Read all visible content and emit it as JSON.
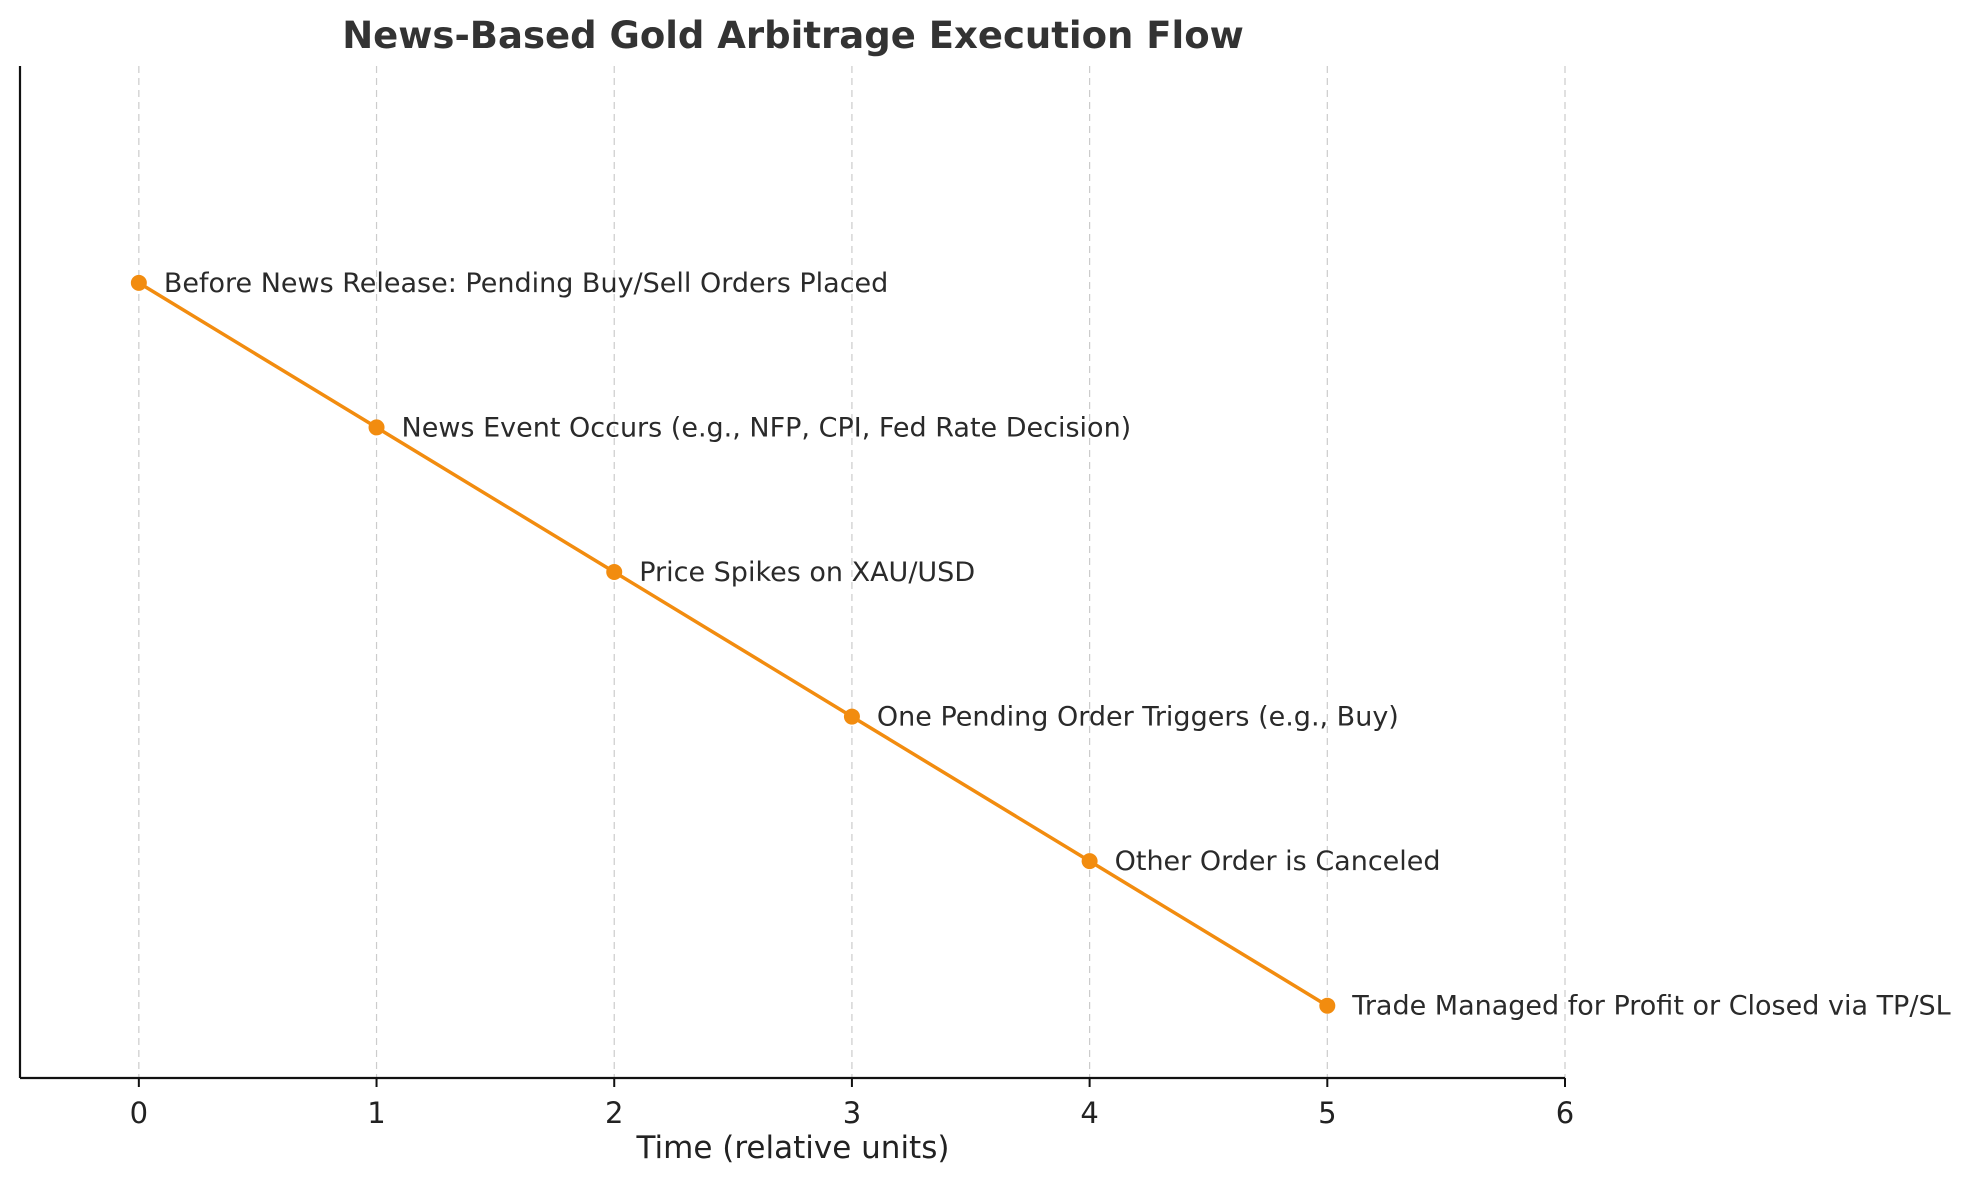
{
  "chart_data": {
    "type": "line",
    "title": "News-Based Gold Arbitrage Execution Flow",
    "xlabel": "Time (relative units)",
    "ylabel": "",
    "xlim": [
      -0.5,
      6
    ],
    "ylim": [
      -0.5,
      6.5
    ],
    "x_ticks": [
      0,
      1,
      2,
      3,
      4,
      5,
      6
    ],
    "grid": "vertical dashed",
    "line_color": "#f28c0f",
    "marker": "circle",
    "series": [
      {
        "x": [
          0,
          1,
          2,
          3,
          4,
          5
        ],
        "values": [
          5,
          4,
          3,
          2,
          1,
          0
        ],
        "point_labels": [
          "Before News Release: Pending Buy/Sell Orders Placed",
          "News Event Occurs (e.g., NFP, CPI, Fed Rate Decision)",
          "Price Spikes on XAU/USD",
          "One Pending Order Triggers (e.g., Buy)",
          "Other Order is Canceled",
          "Trade Managed for Profit or Closed via TP/SL"
        ]
      }
    ]
  }
}
